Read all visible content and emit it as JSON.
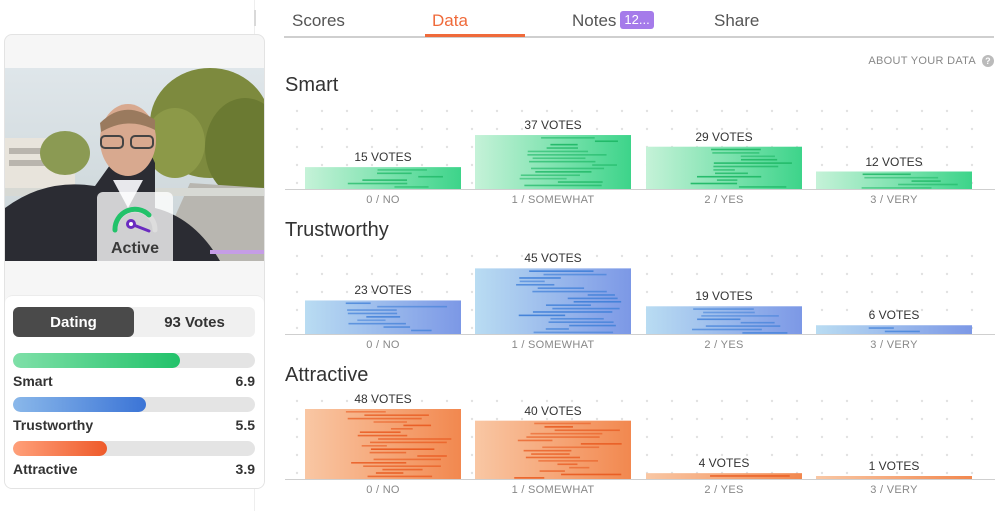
{
  "tabs": [
    {
      "label": "Scores",
      "active": false
    },
    {
      "label": "Data",
      "active": true
    },
    {
      "label": "Notes",
      "active": false,
      "badge": "12..."
    },
    {
      "label": "Share",
      "active": false
    }
  ],
  "about_link": "ABOUT YOUR DATA",
  "profile": {
    "status": "Active",
    "segment": {
      "active": "Dating",
      "other": "93 Votes"
    },
    "stats": [
      {
        "name": "Smart",
        "value": "6.9",
        "fraction": 0.69,
        "color_from": "#7fe0a8",
        "color_to": "#22c26a"
      },
      {
        "name": "Trustworthy",
        "value": "5.5",
        "fraction": 0.55,
        "color_from": "#8ab8ea",
        "color_to": "#3b74d6"
      },
      {
        "name": "Attractive",
        "value": "3.9",
        "fraction": 0.39,
        "color_from": "#ffa07a",
        "color_to": "#ee5a2a"
      }
    ]
  },
  "categories": [
    "0 / NO",
    "1 / SOMEWHAT",
    "2 / YES",
    "3 / VERY"
  ],
  "chart_data": [
    {
      "type": "bar",
      "title": "Smart",
      "categories": [
        "0 / NO",
        "1 / SOMEWHAT",
        "2 / YES",
        "3 / VERY"
      ],
      "values": [
        15,
        37,
        29,
        12
      ],
      "labels": [
        "15 VOTES",
        "37 VOTES",
        "29 VOTES",
        "12 VOTES"
      ],
      "color_light": "#c5f2d8",
      "color_dark": "#3dd48a",
      "stripe": "#1fb866"
    },
    {
      "type": "bar",
      "title": "Trustworthy",
      "categories": [
        "0 / NO",
        "1 / SOMEWHAT",
        "2 / YES",
        "3 / VERY"
      ],
      "values": [
        23,
        45,
        19,
        6
      ],
      "labels": [
        "23 VOTES",
        "45 VOTES",
        "19 VOTES",
        "6 VOTES"
      ],
      "color_light": "#b9dcf2",
      "color_dark": "#7c98e6",
      "stripe": "#3f7fd8"
    },
    {
      "type": "bar",
      "title": "Attractive",
      "categories": [
        "0 / NO",
        "1 / SOMEWHAT",
        "2 / YES",
        "3 / VERY"
      ],
      "values": [
        48,
        40,
        4,
        1
      ],
      "labels": [
        "48 VOTES",
        "40 VOTES",
        "4 VOTES",
        "1 VOTES"
      ],
      "color_light": "#f9c7a4",
      "color_dark": "#f2884f",
      "stripe": "#e8591f"
    }
  ]
}
